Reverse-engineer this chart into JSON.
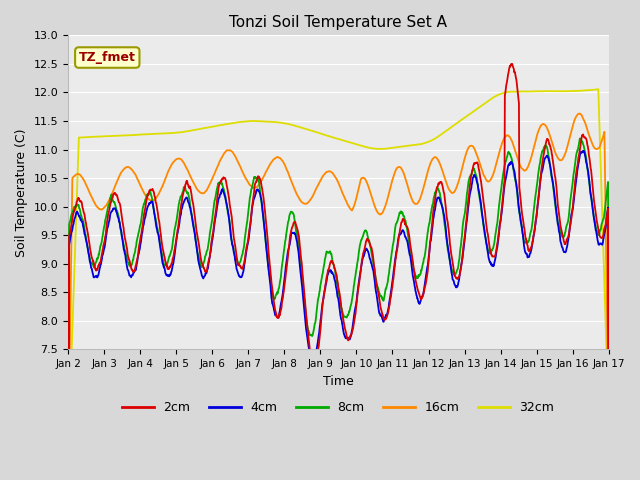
{
  "title": "Tonzi Soil Temperature Set A",
  "xlabel": "Time",
  "ylabel": "Soil Temperature (C)",
  "ylim": [
    7.5,
    13.0
  ],
  "yticks": [
    7.5,
    8.0,
    8.5,
    9.0,
    9.5,
    10.0,
    10.5,
    11.0,
    11.5,
    12.0,
    12.5,
    13.0
  ],
  "xtick_labels": [
    "Jan 2",
    "Jan 3",
    "Jan 4",
    "Jan 5",
    "Jan 6",
    "Jan 7",
    "Jan 8",
    "Jan 9",
    "Jan 10",
    "Jan 11",
    "Jan 12",
    "Jan 13",
    "Jan 14",
    "Jan 15",
    "Jan 16",
    "Jan 17"
  ],
  "colors": {
    "2cm": "#dd0000",
    "4cm": "#0000dd",
    "8cm": "#00aa00",
    "16cm": "#ff8800",
    "32cm": "#dddd00"
  },
  "legend_label": "TZ_fmet",
  "legend_box_facecolor": "#ffffcc",
  "legend_text_color": "#990000",
  "legend_box_edgecolor": "#999900",
  "bg_color": "#d8d8d8",
  "plot_bg_color": "#ebebeb"
}
